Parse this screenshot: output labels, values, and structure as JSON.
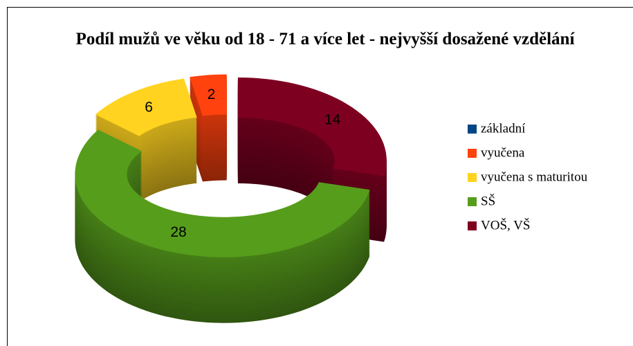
{
  "chart_data": {
    "type": "donut3d",
    "title": "Podíl mužů ve věku od 18 - 71 a více let - nejvyšší dosažené vzdělání",
    "categories": [
      "základní",
      "vyučena",
      "vyučena s maturitou",
      "SŠ",
      "VOŠ, VŠ"
    ],
    "values": [
      0,
      2,
      6,
      28,
      14
    ],
    "colors": [
      "#004586",
      "#ff420e",
      "#ffd320",
      "#579d1c",
      "#7e0021"
    ],
    "legend": "right"
  }
}
